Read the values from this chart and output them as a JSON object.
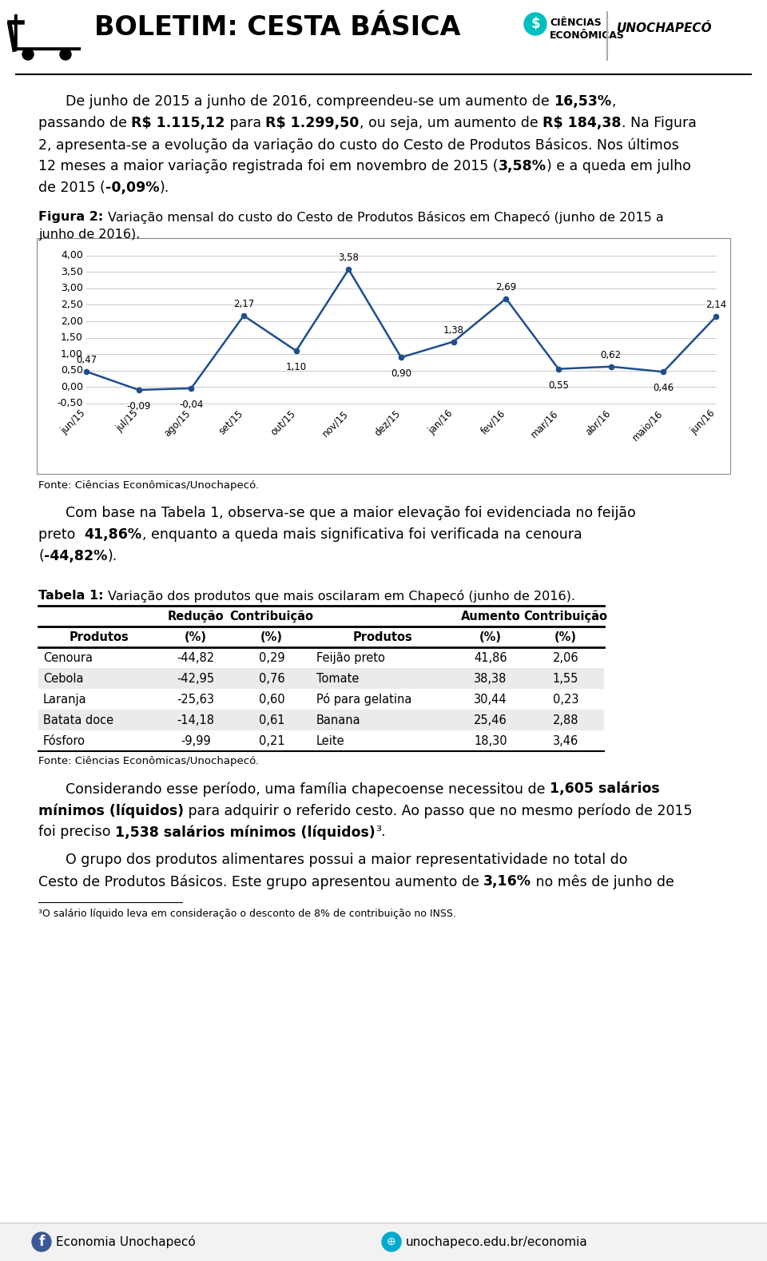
{
  "title": "BOLETIM: CESTA BÁSICA",
  "chart_months": [
    "jun/15",
    "jul/15",
    "ago/15",
    "set/15",
    "out/15",
    "nov/15",
    "dez/15",
    "jan/16",
    "fev/16",
    "mar/16",
    "abr/16",
    "maio/16",
    "jun/16"
  ],
  "chart_values": [
    0.47,
    -0.09,
    -0.04,
    2.17,
    1.1,
    3.58,
    0.9,
    1.38,
    2.69,
    0.55,
    0.62,
    0.46,
    2.14
  ],
  "chart_ylim": [
    -0.5,
    4.0
  ],
  "chart_yticks": [
    -0.5,
    0.0,
    0.5,
    1.0,
    1.5,
    2.0,
    2.5,
    3.0,
    3.5,
    4.0
  ],
  "chart_line_color": "#1F4E8C",
  "table_data": [
    [
      "Cenoura",
      "-44,82",
      "0,29",
      "Feijão preto",
      "41,86",
      "2,06"
    ],
    [
      "Cebola",
      "-42,95",
      "0,76",
      "Tomate",
      "38,38",
      "1,55"
    ],
    [
      "Laranja",
      "-25,63",
      "0,60",
      "Pó para gelatina",
      "30,44",
      "0,23"
    ],
    [
      "Batata doce",
      "-14,18",
      "0,61",
      "Banana",
      "25,46",
      "2,88"
    ],
    [
      "Fósforo",
      "-9,99",
      "0,21",
      "Leite",
      "18,30",
      "3,46"
    ]
  ],
  "bg_color": "#ffffff",
  "footer_bg": "#f5f5f5",
  "teal_color": "#00BFBF",
  "blue_color": "#1F4E8C",
  "fb_color": "#3b5998",
  "link_color": "#00AACC"
}
